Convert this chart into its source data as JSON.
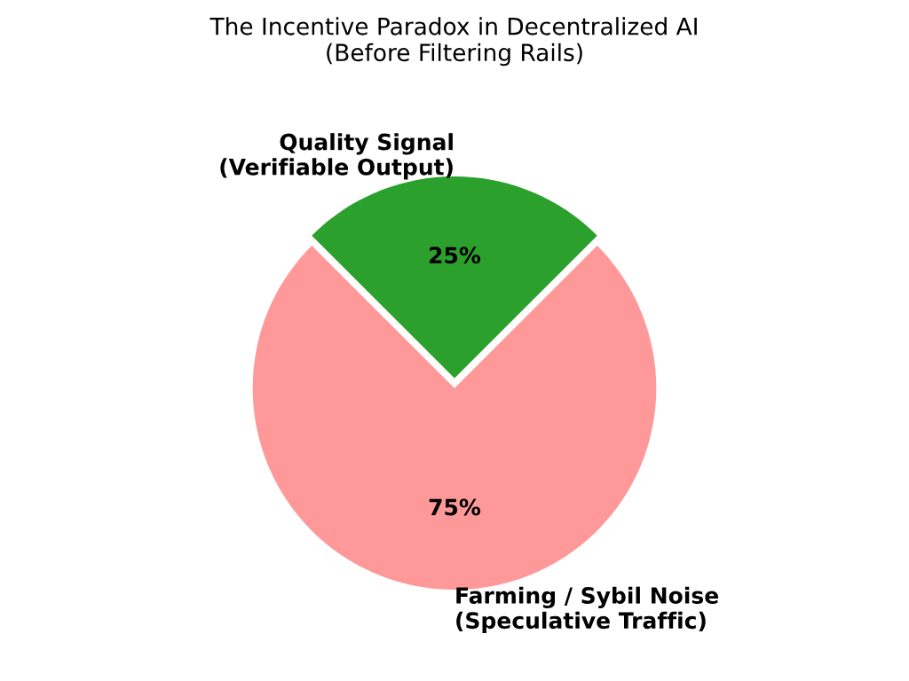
{
  "chart_data": {
    "type": "pie",
    "title": "The Incentive Paradox in Decentralized AI\n(Before Filtering Rails)",
    "categories": [
      "Quality Signal\n(Verifiable Output)",
      "Farming / Sybil Noise\n(Speculative Traffic)"
    ],
    "values": [
      25,
      75
    ],
    "colors": [
      "#2ca02c",
      "#ff9999"
    ],
    "value_labels": [
      "25%",
      "75%"
    ],
    "legend": false
  }
}
